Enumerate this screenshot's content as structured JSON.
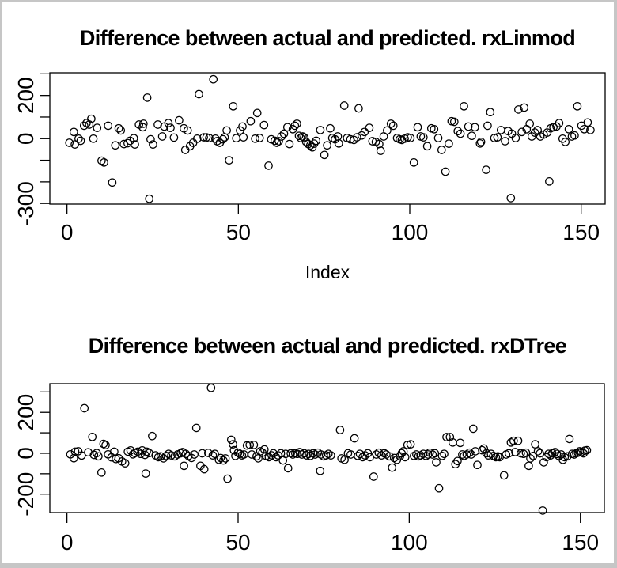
{
  "window": {
    "background": "#ffffff",
    "frame_color": "#c6c6c6"
  },
  "chart_data": [
    {
      "type": "scatter",
      "title": "Difference between actual and predicted. rxLinmod",
      "xlabel": "Index",
      "ylabel": "",
      "marker": "open-circle",
      "marker_color": "#000000",
      "grid": false,
      "legend": null,
      "xlim": [
        -5,
        157
      ],
      "ylim": [
        -303,
        305
      ],
      "x_ticks": [
        0,
        50,
        100,
        150
      ],
      "x_tick_labels": [
        "0",
        "50",
        "100",
        "150"
      ],
      "y_ticks": [
        300,
        200,
        100,
        0,
        -100,
        -200,
        -300
      ],
      "y_tick_labels": [
        "",
        "200",
        "",
        "0",
        "",
        "",
        "-300"
      ],
      "points": {
        "x": [
          0.7,
          2,
          2.3,
          3.4,
          4,
          5,
          5.7,
          6.5,
          7.1,
          7.7,
          8.8,
          10.1,
          10.8,
          12,
          13.2,
          14.1,
          15.1,
          15.7,
          16.6,
          17.7,
          18.4,
          19.5,
          19.8,
          21,
          22.1,
          22.3,
          23.4,
          24,
          24.4,
          25.1,
          26.5,
          27.8,
          28.4,
          29.6,
          30.2,
          31.2,
          32.7,
          34.1,
          34.5,
          35.2,
          35.9,
          36.8,
          38,
          38.5,
          39.9,
          40.7,
          41.5,
          42.7,
          43.3,
          43.8,
          44.6,
          45.5,
          46,
          46.6,
          47.3,
          48.5,
          49.4,
          50.5,
          51.2,
          51.5,
          53.6,
          54.9,
          55.5,
          56.2,
          57.5,
          58.8,
          59.6,
          60.6,
          61.2,
          61.8,
          62.6,
          63.3,
          64.3,
          64.9,
          65.9,
          66.5,
          67.1,
          67.7,
          68.2,
          68.7,
          69.2,
          69.8,
          70.4,
          71,
          71.6,
          72.1,
          72.7,
          73.9,
          75.1,
          75.9,
          76.8,
          77.4,
          78.2,
          79,
          79.3,
          80.9,
          81.7,
          82.7,
          83.7,
          84.6,
          85.1,
          86,
          86.8,
          88.2,
          89.1,
          90.1,
          91.1,
          91.5,
          92.4,
          93.4,
          94.5,
          95.2,
          96.3,
          97.1,
          97.7,
          98.5,
          99.4,
          100.2,
          101.2,
          102.3,
          103.2,
          104,
          105.1,
          106.3,
          107.1,
          108.3,
          109.3,
          110.4,
          111.4,
          112.2,
          113,
          114,
          114.8,
          115.8,
          117.1,
          118.1,
          119,
          120.5,
          120.8,
          122.3,
          122.7,
          123.5,
          124.7,
          125.6,
          126.6,
          127.8,
          128.7,
          129.5,
          129.8,
          130.9,
          131.7,
          132.7,
          133.4,
          134.1,
          135,
          135.6,
          136.5,
          137.3,
          138.1,
          139.1,
          140.1,
          140.7,
          141.1,
          141.9,
          142.8,
          143.6,
          144.6,
          145.4,
          146.4,
          147.3,
          148.1,
          148.9,
          150.1,
          150.9,
          151.9,
          152.7
        ],
        "y": [
          -19,
          31,
          -27,
          0,
          -10,
          60,
          72,
          65,
          92,
          0,
          50,
          -102,
          -110,
          60,
          -203,
          -31,
          48,
          38,
          -25,
          -21,
          -10,
          2,
          -27,
          65,
          53,
          69,
          190,
          -278,
          -3,
          -27,
          65,
          10,
          56,
          72,
          50,
          5,
          85,
          48,
          -52,
          38,
          -35,
          -19,
          0,
          206,
          6,
          6,
          3,
          275,
          0,
          -12,
          -19,
          -3,
          6,
          38,
          -100,
          150,
          2,
          38,
          56,
          6,
          81,
          0,
          119,
          3,
          63,
          -125,
          -3,
          -10,
          -19,
          -12,
          10,
          23,
          53,
          -25,
          44,
          60,
          69,
          13,
          3,
          10,
          6,
          -15,
          -25,
          -31,
          -40,
          -23,
          -10,
          40,
          -75,
          -31,
          48,
          3,
          -3,
          10,
          -22,
          153,
          3,
          -3,
          -6,
          6,
          140,
          15,
          31,
          50,
          -12,
          -15,
          -25,
          -56,
          10,
          38,
          69,
          60,
          3,
          -3,
          -6,
          0,
          6,
          3,
          -110,
          53,
          10,
          6,
          -35,
          48,
          44,
          3,
          -52,
          -153,
          -23,
          81,
          78,
          35,
          23,
          150,
          56,
          13,
          53,
          -22,
          -15,
          -144,
          60,
          123,
          3,
          6,
          40,
          -12,
          35,
          -275,
          23,
          3,
          135,
          31,
          144,
          44,
          69,
          10,
          28,
          40,
          10,
          19,
          28,
          -198,
          48,
          53,
          56,
          72,
          0,
          -15,
          44,
          10,
          15,
          150,
          60,
          44,
          75,
          40
        ]
      }
    },
    {
      "type": "scatter",
      "title": "Difference between actual and predicted. rxDTree",
      "xlabel": "",
      "ylabel": "",
      "marker": "open-circle",
      "marker_color": "#000000",
      "grid": false,
      "legend": null,
      "xlim": [
        -5,
        157
      ],
      "ylim": [
        -290,
        340
      ],
      "x_ticks": [
        0,
        50,
        100,
        150
      ],
      "x_tick_labels": [
        "0",
        "50",
        "100",
        "150"
      ],
      "y_ticks": [
        300,
        200,
        100,
        0,
        -100,
        -200
      ],
      "y_tick_labels": [
        "",
        "200",
        "",
        "0",
        "",
        "-200"
      ],
      "points": {
        "x": [
          1,
          2,
          2.4,
          3.3,
          4.3,
          5.1,
          6.2,
          7.4,
          7.9,
          8.7,
          9.2,
          10.1,
          10.7,
          11.3,
          12,
          13,
          13.8,
          14.3,
          15.1,
          16.1,
          17,
          17.8,
          18.6,
          19.3,
          19.9,
          20.7,
          21.5,
          22,
          22.8,
          23,
          23.3,
          24,
          24.9,
          25.9,
          26.7,
          27.4,
          28.2,
          29,
          29.7,
          30.5,
          31.5,
          32.3,
          33.2,
          33.8,
          34.2,
          34.7,
          35.5,
          36.4,
          37.2,
          37.8,
          39,
          39.5,
          40.1,
          41.3,
          42.1,
          42.6,
          43.2,
          44.4,
          44.9,
          45.7,
          46.3,
          46.9,
          48,
          48.5,
          48.8,
          49.2,
          50,
          50.5,
          51.1,
          51.7,
          52.6,
          53.4,
          54,
          54.6,
          55.4,
          55.9,
          56.5,
          57.1,
          57.7,
          58.2,
          59,
          59.8,
          60.3,
          61.1,
          61.7,
          62.5,
          63.1,
          63.9,
          64.6,
          65.4,
          66,
          66.7,
          67.3,
          68,
          68.6,
          69.3,
          70,
          70.6,
          71.1,
          71.9,
          72.5,
          73.3,
          74,
          74.2,
          75,
          75.7,
          76.4,
          77.1,
          79.8,
          80.2,
          81.1,
          82.1,
          82.9,
          84,
          85,
          85.6,
          86.4,
          87.1,
          87.9,
          88.5,
          89.6,
          90.4,
          91.1,
          91.9,
          92.7,
          93.3,
          94.2,
          95,
          95.6,
          96.4,
          97.3,
          97.8,
          98.3,
          98.8,
          99.5,
          100.4,
          101.4,
          102.1,
          102.7,
          103.3,
          104.1,
          104.9,
          105.5,
          106,
          106.8,
          107.5,
          107.9,
          108.7,
          109.6,
          110.2,
          110.9,
          111.9,
          112.7,
          113.5,
          114.1,
          114.9,
          115.5,
          116,
          116.8,
          117.6,
          118.1,
          118.7,
          119.3,
          119.9,
          121.3,
          121.8,
          122.6,
          123.1,
          123.9,
          124.6,
          125.3,
          125.9,
          126.4,
          127.7,
          128.3,
          129.1,
          129.7,
          130.5,
          131,
          131.8,
          132.6,
          133.4,
          134.1,
          134.9,
          135.4,
          136.2,
          136.8,
          137.6,
          138.2,
          139,
          139.3,
          140.1,
          140.7,
          141.3,
          141.8,
          142.6,
          143.1,
          143.7,
          144.4,
          144.9,
          145.4,
          146.2,
          146.8,
          147.6,
          148.2,
          148.8,
          149.3,
          149.8,
          150.3,
          150.9,
          151.3,
          151.9
        ],
        "y": [
          -5,
          -24,
          8,
          10,
          -11,
          220,
          5,
          80,
          -8,
          1,
          -15,
          -94,
          46,
          40,
          -5,
          -20,
          8,
          -28,
          -24,
          -40,
          -49,
          8,
          14,
          -5,
          1,
          8,
          -3,
          14,
          -8,
          -99,
          8,
          1,
          84,
          -10,
          -19,
          -15,
          -25,
          -13,
          -3,
          -10,
          -15,
          -6,
          0,
          6,
          -61,
          -3,
          -13,
          -23,
          -6,
          124,
          -61,
          0,
          -78,
          2,
          320,
          -10,
          -3,
          -32,
          -23,
          -35,
          -25,
          -124,
          66,
          44,
          15,
          -13,
          3,
          -3,
          -10,
          -6,
          38,
          41,
          -6,
          41,
          -15,
          -25,
          10,
          3,
          19,
          -13,
          -19,
          -10,
          0,
          -19,
          -10,
          0,
          -35,
          -3,
          -73,
          0,
          -6,
          0,
          -3,
          6,
          -6,
          0,
          -10,
          -3,
          -13,
          0,
          -6,
          3,
          -86,
          -6,
          -15,
          -10,
          -3,
          -10,
          114,
          -25,
          -32,
          0,
          -6,
          73,
          -13,
          -3,
          -19,
          -10,
          0,
          -19,
          -114,
          -6,
          3,
          -10,
          0,
          -6,
          -15,
          -70,
          -23,
          -32,
          -15,
          0,
          10,
          -19,
          41,
          44,
          -13,
          -6,
          -15,
          -10,
          -3,
          -13,
          -6,
          3,
          -6,
          0,
          -44,
          -171,
          -13,
          -3,
          79,
          79,
          53,
          -53,
          -38,
          51,
          -6,
          -13,
          -6,
          3,
          -6,
          120,
          10,
          -57,
          15,
          23,
          0,
          -10,
          -3,
          -13,
          -19,
          -15,
          -19,
          -108,
          -6,
          0,
          53,
          61,
          6,
          61,
          0,
          -3,
          3,
          -61,
          -25,
          -13,
          44,
          10,
          0,
          -280,
          -44,
          -19,
          -3,
          -10,
          0,
          6,
          -3,
          -13,
          -6,
          -32,
          -19,
          -15,
          70,
          -3,
          -6,
          0,
          3,
          10,
          6,
          0,
          13,
          15
        ]
      }
    }
  ]
}
